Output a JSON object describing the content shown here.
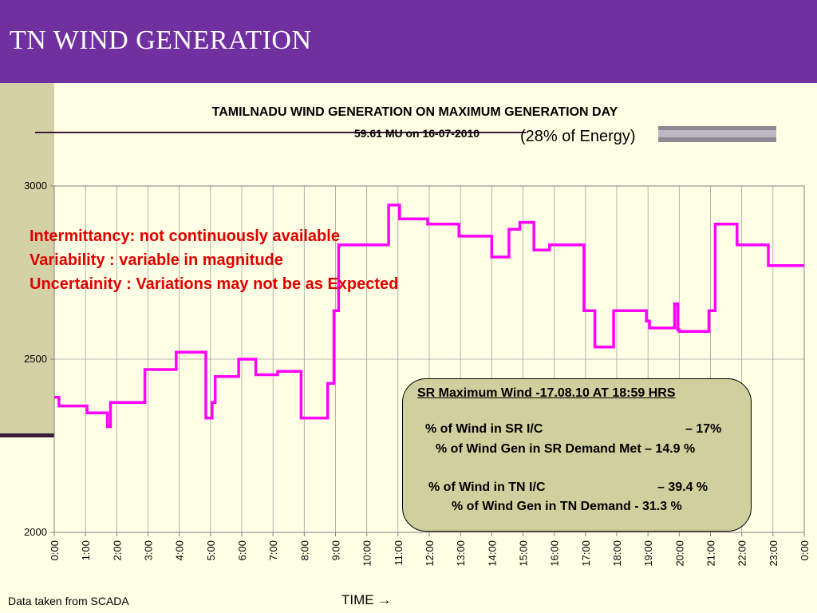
{
  "header": {
    "title": "TN WIND GENERATION"
  },
  "chart_data": {
    "type": "line",
    "title": "TAMILNADU WIND GENERATION ON MAXIMUM GENERATION DAY",
    "subtitle": "59.61 MU on  16-07-2010",
    "energy_note": "(28% of Energy)",
    "xlabel": "TIME →",
    "ylabel": "",
    "ylim": [
      2000,
      3000
    ],
    "yticks": [
      2000,
      2500,
      3000
    ],
    "ytick_labels": [
      "2000",
      "2500",
      "3000"
    ],
    "xlim": [
      0,
      24
    ],
    "xtick_labels": [
      "0:00",
      "1:00",
      "2:00",
      "3:00",
      "4:00",
      "5:00",
      "6:00",
      "7:00",
      "8:00",
      "9:00",
      "10:00",
      "11:00",
      "12:00",
      "13:00",
      "14:00",
      "15:00",
      "16:00",
      "17:00",
      "18:00",
      "19:00",
      "20:00",
      "21:00",
      "22:00",
      "23:00",
      "0:00"
    ],
    "grid": true,
    "line_color": "#FF00FF",
    "series": [
      {
        "x": [
          0,
          0.15,
          0.15,
          1.05,
          1.05,
          1.7,
          1.7,
          1.8,
          1.8,
          2.9,
          2.9,
          3.9,
          3.9,
          4.85,
          4.85,
          4.95,
          4.95,
          5.05,
          5.05,
          5.15,
          5.15,
          5.9,
          5.9,
          6.45,
          6.45,
          7.15,
          7.15,
          7.9,
          7.9,
          8.75,
          8.75,
          8.95,
          8.95,
          9.1,
          9.1,
          10.7,
          10.7,
          11.05,
          11.05,
          11.95,
          11.95,
          12.95,
          12.95,
          14.0,
          14.0,
          14.55,
          14.55,
          14.9,
          14.9,
          15.35,
          15.35,
          15.85,
          15.85,
          16.95,
          16.95,
          17.3,
          17.3,
          17.9,
          17.9,
          18.65,
          18.65,
          18.95,
          18.95,
          19.05,
          19.05,
          19.85,
          19.85,
          19.95,
          19.95,
          20.0,
          20.0,
          20.95,
          20.95,
          21.15,
          21.15,
          21.85,
          21.85,
          22.85,
          22.85,
          24.0
        ],
        "y": [
          2390,
          2390,
          2365,
          2365,
          2345,
          2345,
          2305,
          2305,
          2375,
          2375,
          2470,
          2470,
          2520,
          2520,
          2330,
          2330,
          2330,
          2330,
          2375,
          2375,
          2450,
          2450,
          2500,
          2500,
          2455,
          2455,
          2465,
          2465,
          2330,
          2330,
          2430,
          2430,
          2640,
          2640,
          2830,
          2830,
          2945,
          2945,
          2905,
          2905,
          2890,
          2890,
          2855,
          2855,
          2795,
          2795,
          2875,
          2875,
          2895,
          2895,
          2815,
          2815,
          2830,
          2830,
          2640,
          2640,
          2535,
          2535,
          2640,
          2640,
          2640,
          2640,
          2610,
          2610,
          2590,
          2590,
          2660,
          2660,
          2585,
          2585,
          2580,
          2580,
          2640,
          2640,
          2890,
          2890,
          2830,
          2830,
          2770,
          2770
        ]
      }
    ]
  },
  "notes": {
    "line1": "Intermittancy: not continuously available",
    "line2": "Variability : variable in magnitude",
    "line3": "Uncertainity : Variations may not be as Expected"
  },
  "info_box": {
    "heading": "SR Maximum Wind -17.08.10 AT 18:59 HRS",
    "sr_ic_label": "% of Wind in SR I/C",
    "sr_ic_value": "– 17%",
    "sr_demand": "% of Wind Gen in SR Demand Met – 14.9 %",
    "tn_ic_label": "% of Wind in TN I/C",
    "tn_ic_value": "–  39.4 %",
    "tn_demand": "% of Wind Gen in TN Demand  - 31.3 %"
  },
  "source_note": "Data  taken from SCADA"
}
